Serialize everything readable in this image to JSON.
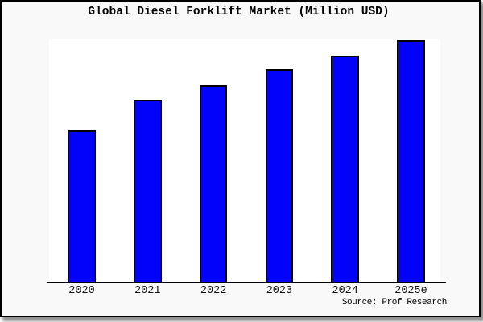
{
  "title": "Global Diesel Forklift Market (Million USD)",
  "source_note": "Source: Prof Research",
  "colors": {
    "bar_fill": "#0202fa",
    "bar_edge": "#000000",
    "figure_bg": "#f9f9f9",
    "plot_bg": "#ffffff",
    "axis": "#000000"
  },
  "chart_data": {
    "type": "bar",
    "title": "Global Diesel Forklift Market (Million USD)",
    "categories": [
      "2020",
      "2021",
      "2022",
      "2023",
      "2024",
      "2025e"
    ],
    "values": [
      62.7,
      75.3,
      81.4,
      87.9,
      93.6,
      100
    ],
    "value_note": "relative heights, percent of 2025e bar; y-axis has no visible scale labels",
    "xlabel": "",
    "ylabel": "",
    "ylim": [
      0,
      100
    ],
    "gridlines": false,
    "legend": false,
    "y_axis_labels_visible": false,
    "source_note": "Source: Prof Research"
  }
}
